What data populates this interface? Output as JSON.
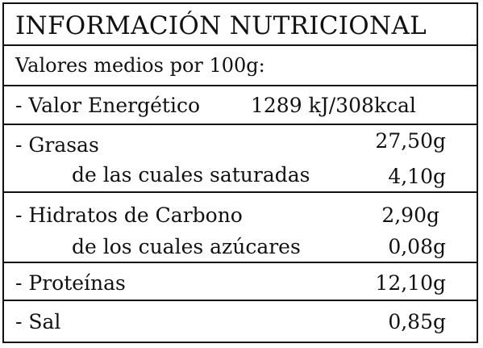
{
  "title": "INFORMACIÓN NUTRICIONAL",
  "subtitle": "Valores medios por 100g:",
  "rows": [
    {
      "label": "- Valor Energético",
      "value": "1289 kJ/308kcal"
    },
    {
      "label": "- Grasas",
      "value": "27,50g",
      "sub_label": "de las cuales saturadas",
      "sub_value": "4,10g"
    },
    {
      "label": "- Hidratos de Carbono",
      "value": "2,90g",
      "sub_label": "de los cuales azúcares",
      "sub_value": "0,08g"
    },
    {
      "label": "- Proteínas",
      "value": "12,10g"
    },
    {
      "label": "- Sal",
      "value": "0,85g"
    }
  ]
}
